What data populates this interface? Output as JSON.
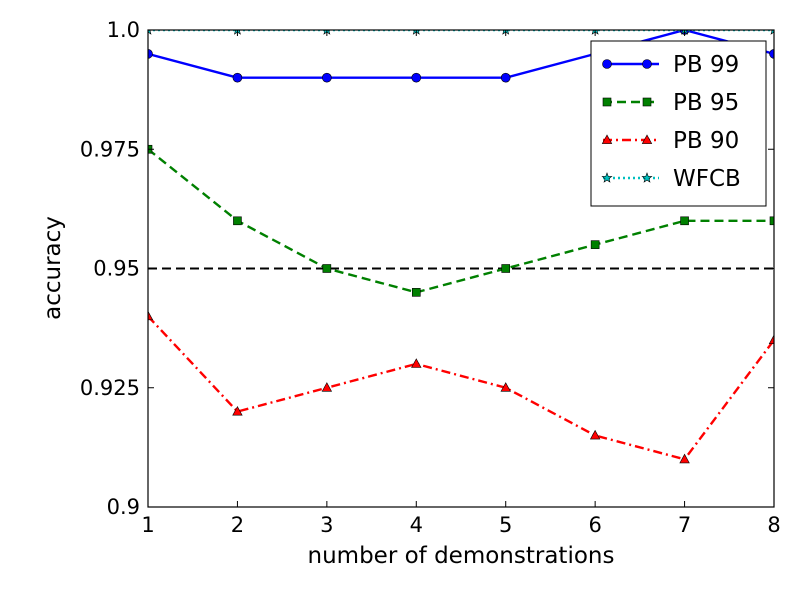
{
  "chart_data": {
    "type": "line",
    "title": "",
    "xlabel": "number of demonstrations",
    "ylabel": "accuracy",
    "x": [
      1,
      2,
      3,
      4,
      5,
      6,
      7,
      8
    ],
    "xlim": [
      1,
      8
    ],
    "ylim": [
      0.9,
      1.0
    ],
    "xticks": [
      "1",
      "2",
      "3",
      "4",
      "5",
      "6",
      "7",
      "8"
    ],
    "yticks": [
      {
        "value": 0.9,
        "label": "0.9"
      },
      {
        "value": 0.925,
        "label": "0.925"
      },
      {
        "value": 0.95,
        "label": "0.95"
      },
      {
        "value": 0.975,
        "label": "0.975"
      },
      {
        "value": 1.0,
        "label": "1.0"
      }
    ],
    "grid": false,
    "legend_position": "top-right",
    "reference_line": {
      "y": 0.95,
      "color": "#000000",
      "style": "dashed"
    },
    "series": [
      {
        "name": "PB 99",
        "color": "#0000ff",
        "style": "solid",
        "marker": "circle",
        "values": [
          0.995,
          0.99,
          0.99,
          0.99,
          0.99,
          0.995,
          1.0,
          0.995
        ]
      },
      {
        "name": "PB 95",
        "color": "#008000",
        "style": "dashed",
        "marker": "square",
        "values": [
          0.975,
          0.96,
          0.95,
          0.945,
          0.95,
          0.955,
          0.96,
          0.96
        ]
      },
      {
        "name": "PB 90",
        "color": "#ff0000",
        "style": "dashdot",
        "marker": "triangle",
        "values": [
          0.94,
          0.92,
          0.925,
          0.93,
          0.925,
          0.915,
          0.91,
          0.935
        ]
      },
      {
        "name": "WFCB",
        "color": "#00bfbf",
        "style": "dotted",
        "marker": "star",
        "values": [
          1.0,
          1.0,
          1.0,
          1.0,
          1.0,
          1.0,
          1.0,
          1.0
        ]
      }
    ]
  }
}
